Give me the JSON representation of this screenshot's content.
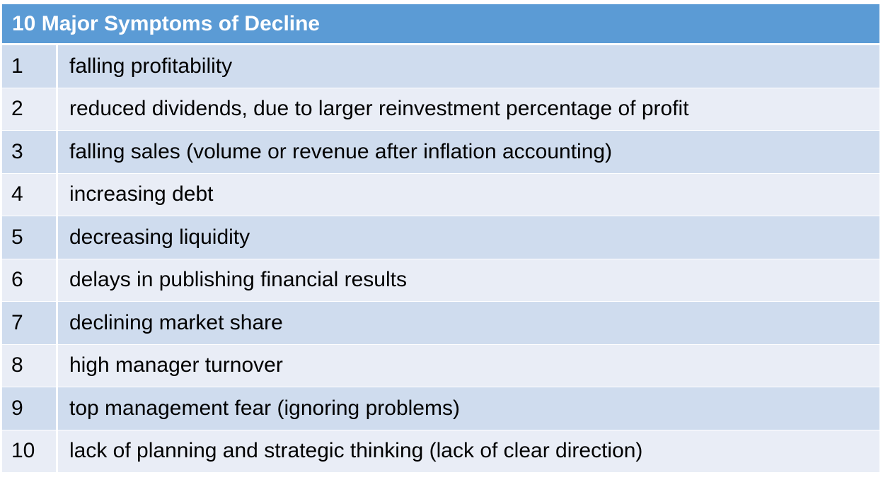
{
  "table": {
    "title": "10 Major Symptoms of Decline",
    "rows": [
      {
        "num": "1",
        "text": "falling profitability"
      },
      {
        "num": "2",
        "text": "reduced dividends, due to larger reinvestment percentage of profit"
      },
      {
        "num": "3",
        "text": "falling sales (volume or revenue after inflation accounting)"
      },
      {
        "num": "4",
        "text": "increasing debt"
      },
      {
        "num": "5",
        "text": "decreasing liquidity"
      },
      {
        "num": "6",
        "text": "delays in publishing financial results"
      },
      {
        "num": "7",
        "text": "declining market share"
      },
      {
        "num": "8",
        "text": "high manager turnover"
      },
      {
        "num": "9",
        "text": "top management fear (ignoring problems)"
      },
      {
        "num": "10",
        "text": "lack of planning and strategic thinking (lack of clear direction)"
      }
    ]
  },
  "colors": {
    "header_bg": "#5b9bd5",
    "row_dark": "#cfdcee",
    "row_light": "#e9edf6"
  }
}
